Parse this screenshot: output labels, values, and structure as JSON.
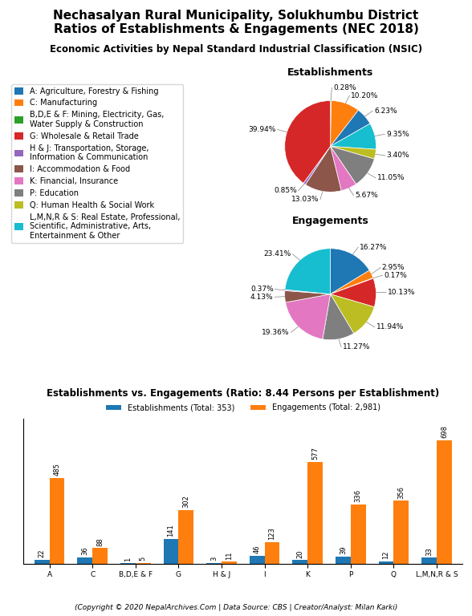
{
  "title": "Nechasalyan Rural Municipality, Solukhumbu District\nRatios of Establishments & Engagements (NEC 2018)",
  "subtitle": "Economic Activities by Nepal Standard Industrial Classification (NSIC)",
  "annotations": [
    "(Copyright © 2020 NepalArchives.Com | Data Source: CBS | Creator/Analyst: Milan Karki)"
  ],
  "categories": [
    "A: Agriculture, Forestry & Fishing",
    "C: Manufacturing",
    "B,D,E & F: Mining, Electricity, Gas,\nWater Supply & Construction",
    "G: Wholesale & Retail Trade",
    "H & J: Transportation, Storage,\nInformation & Communication",
    "I: Accommodation & Food",
    "K: Financial, Insurance",
    "P: Education",
    "Q: Human Health & Social Work",
    "L,M,N,R & S: Real Estate, Professional,\nScientific, Administrative, Arts,\nEntertainment & Other"
  ],
  "legend": "upper left",
  "chart_data": [
    {
      "type": "pie",
      "title": "Establishments",
      "categories": [
        "B,D,E & F: Mining, Electricity, Gas,\nWater Supply & Construction",
        "C: Manufacturing",
        "A: Agriculture, Forestry & Fishing",
        "L,M,N,R & S: Real Estate, Professional,\nScientific, Administrative, Arts,\nEntertainment & Other",
        "Q: Human Health & Social Work",
        "P: Education",
        "K: Financial, Insurance",
        "I: Accommodation & Food",
        "H & J: Transportation, Storage,\nInformation & Communication",
        "G: Wholesale & Retail Trade"
      ],
      "values": [
        0.28,
        10.2,
        6.23,
        9.35,
        3.4,
        11.05,
        5.67,
        13.03,
        0.85,
        39.94
      ],
      "value_labels": [
        "0.28%",
        "10.20%",
        "6.23%",
        "9.35%",
        "3.40%",
        "11.05%",
        "5.67%",
        "13.03%",
        "0.85%",
        "39.94%"
      ],
      "data_labels": true
    },
    {
      "type": "pie",
      "title": "Engagements",
      "categories": [
        "A: Agriculture, Forestry & Fishing",
        "C: Manufacturing",
        "B,D,E & F: Mining, Electricity, Gas,\nWater Supply & Construction",
        "G: Wholesale & Retail Trade",
        "Q: Human Health & Social Work",
        "P: Education",
        "K: Financial, Insurance",
        "I: Accommodation & Food",
        "H & J: Transportation, Storage,\nInformation & Communication",
        "L,M,N,R & S: Real Estate, Professional,\nScientific, Administrative, Arts,\nEntertainment & Other"
      ],
      "values": [
        16.27,
        2.95,
        0.17,
        10.13,
        11.94,
        11.27,
        19.36,
        4.13,
        0.37,
        23.41
      ],
      "value_labels": [
        "16.27%",
        "2.95%",
        "0.17%",
        "10.13%",
        "11.94%",
        "11.27%",
        "19.36%",
        "4.13%",
        "0.37%",
        "23.41%"
      ],
      "data_labels": true
    },
    {
      "type": "bar",
      "title": "Establishments vs. Engagements (Ratio: 8.44 Persons per Establishment)",
      "categories": [
        "A",
        "C",
        "B,D,E & F",
        "G",
        "H & J",
        "I",
        "K",
        "P",
        "Q",
        "L,M,N,R & S"
      ],
      "series": [
        {
          "name": "Establishments (Total: 353)",
          "values": [
            22,
            36,
            1,
            141,
            3,
            46,
            20,
            39,
            12,
            33
          ]
        },
        {
          "name": "Engagements (Total: 2,981)",
          "values": [
            485,
            88,
            5,
            302,
            11,
            123,
            577,
            336,
            356,
            698
          ]
        }
      ],
      "ylim": [
        0,
        820
      ],
      "data_labels": true,
      "tick_labels": "x",
      "legend": "lower center",
      "grid": false
    }
  ]
}
